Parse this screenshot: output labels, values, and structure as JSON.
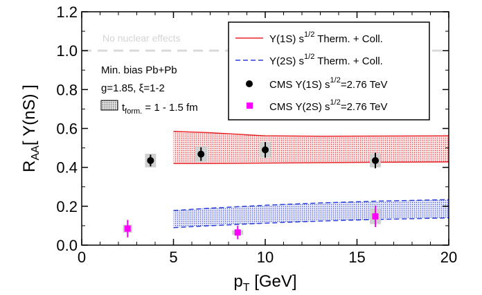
{
  "chart_data": {
    "type": "scatter",
    "xlabel": {
      "main": "p",
      "sub": "T",
      "rest": " [GeV]"
    },
    "ylabel": {
      "main": "R",
      "sub": "AA",
      "rest": "[ Υ(nS) ]"
    },
    "xlim": [
      0,
      20
    ],
    "ylim": [
      0.0,
      1.2
    ],
    "xticks": [
      "0",
      "5",
      "10",
      "15",
      "20"
    ],
    "yticks": [
      "0.0",
      "0.2",
      "0.4",
      "0.6",
      "0.8",
      "1.0",
      "1.2"
    ],
    "reference_line": {
      "y": 1.0,
      "label": "No nuclear effects",
      "color": "#d9d9d9"
    },
    "annotations": {
      "line1": "Min. bias Pb+Pb",
      "line2": "g=1.85,  ξ=1-2",
      "tform_main": "t",
      "tform_sub": "form.",
      "tform_rest": " = 1 - 1.5 fm"
    },
    "bands": [
      {
        "name": "Υ(1S) s",
        "name_sup": "1/2",
        "name_rest": " Therm. + Coll.",
        "color": "#e8262b",
        "style": "solid",
        "x": [
          5,
          7,
          10,
          13,
          16,
          20
        ],
        "upper": [
          0.585,
          0.578,
          0.562,
          0.56,
          0.561,
          0.562
        ],
        "lower": [
          0.42,
          0.42,
          0.422,
          0.424,
          0.426,
          0.428
        ]
      },
      {
        "name": "Υ(2S) s",
        "name_sup": "1/2",
        "name_rest": " Therm. + Coll.",
        "color": "#2b3fd9",
        "style": "dashed",
        "x": [
          5,
          7,
          10,
          13,
          16,
          20
        ],
        "upper": [
          0.178,
          0.19,
          0.205,
          0.217,
          0.226,
          0.234
        ],
        "lower": [
          0.09,
          0.1,
          0.113,
          0.124,
          0.132,
          0.14
        ]
      }
    ],
    "series": [
      {
        "name": "CMS Υ(1S) s",
        "name_sup": "1/2",
        "name_rest": "=2.76 TeV",
        "marker": "circle",
        "color": "#000000",
        "points": [
          {
            "x": 3.75,
            "y": 0.435,
            "err": 0.03,
            "sys": 0.035,
            "w": 0.6
          },
          {
            "x": 6.5,
            "y": 0.468,
            "err": 0.035,
            "sys": 0.04,
            "w": 0.7
          },
          {
            "x": 10.0,
            "y": 0.49,
            "err": 0.04,
            "sys": 0.04,
            "w": 0.6
          },
          {
            "x": 16.0,
            "y": 0.435,
            "err": 0.04,
            "sys": 0.035,
            "w": 0.6
          }
        ]
      },
      {
        "name": "CMS Υ(2S) s",
        "name_sup": "1/2",
        "name_rest": "=2.76 TeV",
        "marker": "square",
        "color": "#ff00ff",
        "points": [
          {
            "x": 2.5,
            "y": 0.085,
            "err": 0.045,
            "sys": 0.02,
            "w": 0.5
          },
          {
            "x": 8.5,
            "y": 0.065,
            "err": 0.035,
            "sys": 0.012,
            "w": 0.6
          },
          {
            "x": 16.0,
            "y": 0.148,
            "err": 0.055,
            "sys": 0.04,
            "w": 0.6
          }
        ]
      }
    ]
  }
}
